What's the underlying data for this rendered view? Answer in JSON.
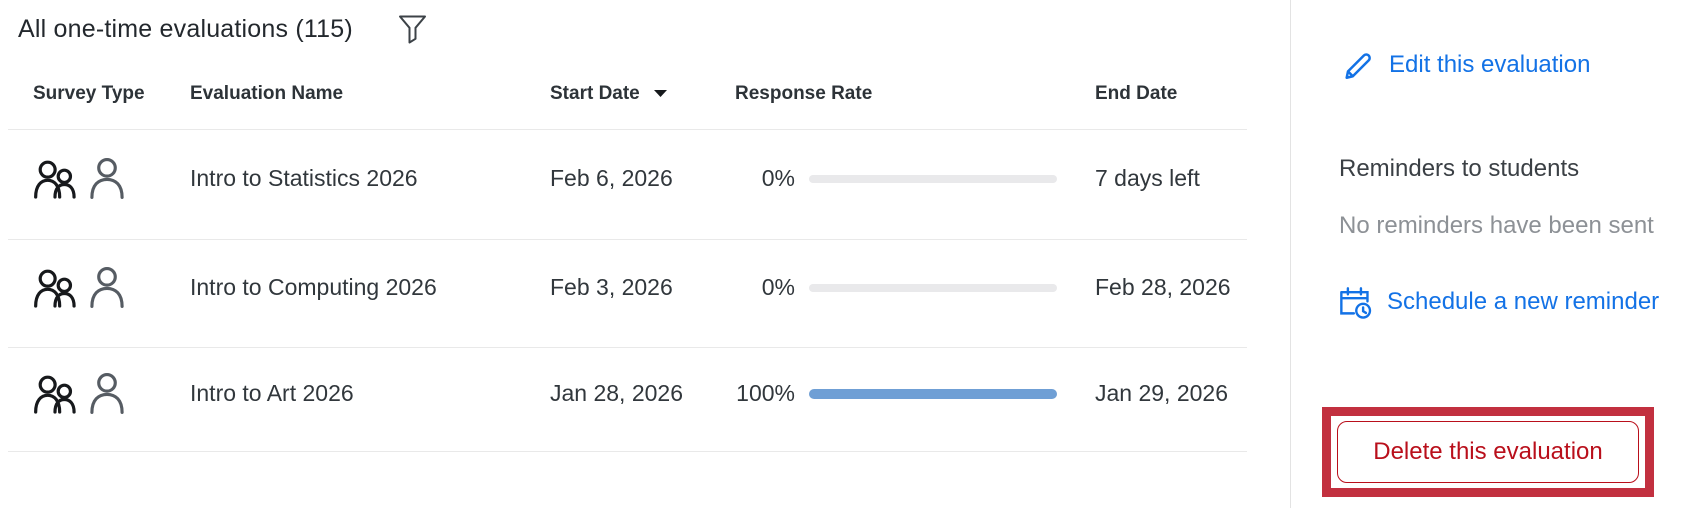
{
  "header": {
    "title": "All one-time evaluations (115)",
    "filter_icon": "funnel-icon"
  },
  "table": {
    "columns": {
      "survey_type": "Survey Type",
      "evaluation_name": "Evaluation Name",
      "start_date": "Start Date",
      "response_rate": "Response Rate",
      "end_date": "End Date"
    },
    "sort": {
      "column": "Start Date",
      "direction": "descending"
    },
    "rows": [
      {
        "survey_type_icons": [
          "group-icon",
          "person-icon"
        ],
        "name": "Intro to Statistics 2026",
        "start_date": "Feb 6, 2026",
        "response_rate_label": "0%",
        "response_rate_value": 0,
        "end_date": "7 days left"
      },
      {
        "survey_type_icons": [
          "group-icon",
          "person-icon"
        ],
        "name": "Intro to Computing 2026",
        "start_date": "Feb 3, 2026",
        "response_rate_label": "0%",
        "response_rate_value": 0,
        "end_date": "Feb 28, 2026"
      },
      {
        "survey_type_icons": [
          "group-icon",
          "person-icon"
        ],
        "name": "Intro to Art 2026",
        "start_date": "Jan 28, 2026",
        "response_rate_label": "100%",
        "response_rate_value": 100,
        "end_date": "Jan 29, 2026"
      }
    ]
  },
  "sidebar": {
    "edit_link": "Edit this evaluation",
    "reminders_title": "Reminders to students",
    "reminders_status": "No reminders have been sent",
    "schedule_link": "Schedule a new reminder",
    "delete_button": "Delete this evaluation"
  },
  "colors": {
    "link_blue": "#1372e6",
    "progress_fill_blue": "#6f9fd5",
    "progress_track_gray": "#e9e9eb",
    "delete_red": "#b90f1b",
    "highlight_red": "#c2303f"
  }
}
